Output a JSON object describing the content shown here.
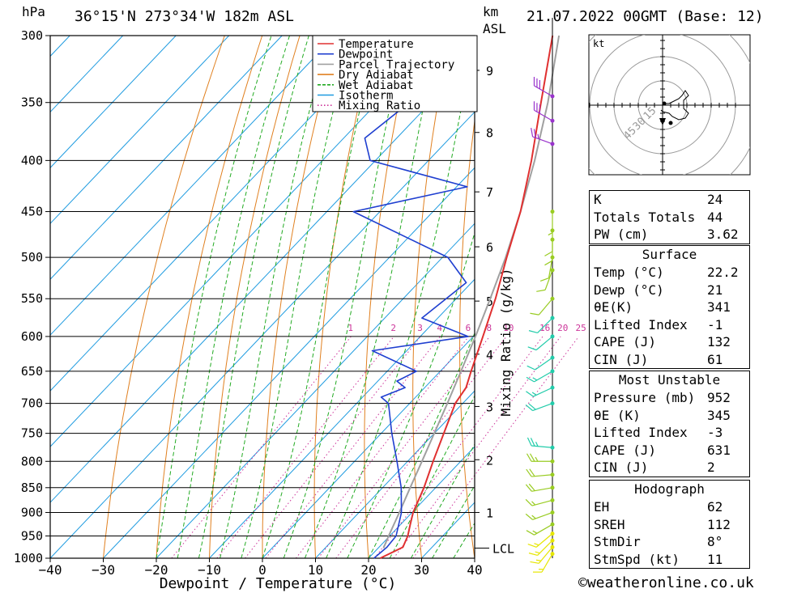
{
  "header": {
    "unit_hpa": "hPa",
    "location": "36°15'N 273°34'W 182m ASL",
    "unit_km": "km",
    "unit_asl": "ASL",
    "datetime": "21.07.2022 00GMT (Base: 12)"
  },
  "chart_data": {
    "type": "skew-t",
    "xlabel": "Dewpoint / Temperature (°C)",
    "ylabel_right": "Mixing Ratio (g/kg)",
    "xlim": [
      -40,
      40
    ],
    "pressure_range": [
      1000,
      300
    ],
    "pressure_ticks": [
      300,
      350,
      400,
      450,
      500,
      550,
      600,
      650,
      700,
      750,
      800,
      850,
      900,
      950,
      1000
    ],
    "temp_ticks": [
      -40,
      -30,
      -20,
      -10,
      0,
      10,
      20,
      30,
      40
    ],
    "km_ticks": [
      {
        "label": "1",
        "p": 900
      },
      {
        "label": "2",
        "p": 797
      },
      {
        "label": "3",
        "p": 705
      },
      {
        "label": "4",
        "p": 625
      },
      {
        "label": "5",
        "p": 553
      },
      {
        "label": "6",
        "p": 488
      },
      {
        "label": "7",
        "p": 430
      },
      {
        "label": "8",
        "p": 375
      },
      {
        "label": "9",
        "p": 325
      }
    ],
    "lcl_label": "LCL",
    "lcl_pressure": 977,
    "mixing_ratio_labels": [
      "1",
      "2",
      "3",
      "4",
      "6",
      "8",
      "10",
      "16",
      "20",
      "25"
    ],
    "mixing_ratio_values": [
      1,
      2,
      3,
      4,
      6,
      8,
      10,
      16,
      20,
      25
    ],
    "legend": [
      {
        "name": "Temperature",
        "color": "#e03030",
        "style": "solid"
      },
      {
        "name": "Dewpoint",
        "color": "#1f3fd0",
        "style": "solid"
      },
      {
        "name": "Parcel Trajectory",
        "color": "#a0a0a0",
        "style": "solid"
      },
      {
        "name": "Dry Adiabat",
        "color": "#e08020",
        "style": "solid"
      },
      {
        "name": "Wet Adiabat",
        "color": "#22aa22",
        "style": "dashed"
      },
      {
        "name": "Isotherm",
        "color": "#1e9be0",
        "style": "solid"
      },
      {
        "name": "Mixing Ratio",
        "color": "#cc3399",
        "style": "dotted"
      }
    ],
    "temperature": [
      {
        "p": 1000,
        "t": 22.2
      },
      {
        "p": 975,
        "t": 24.5
      },
      {
        "p": 950,
        "t": 23.4
      },
      {
        "p": 925,
        "t": 21.8
      },
      {
        "p": 900,
        "t": 20.2
      },
      {
        "p": 850,
        "t": 17.8
      },
      {
        "p": 800,
        "t": 14.8
      },
      {
        "p": 750,
        "t": 11.8
      },
      {
        "p": 700,
        "t": 8.6
      },
      {
        "p": 675,
        "t": 7.8
      },
      {
        "p": 650,
        "t": 5.8
      },
      {
        "p": 600,
        "t": 1.8
      },
      {
        "p": 550,
        "t": -2.6
      },
      {
        "p": 500,
        "t": -7.9
      },
      {
        "p": 450,
        "t": -13.5
      },
      {
        "p": 400,
        "t": -20.6
      },
      {
        "p": 350,
        "t": -29.2
      },
      {
        "p": 300,
        "t": -39.0
      }
    ],
    "dewpoint": [
      {
        "p": 1000,
        "t": 21.0
      },
      {
        "p": 975,
        "t": 21.5
      },
      {
        "p": 950,
        "t": 21.2
      },
      {
        "p": 900,
        "t": 18.0
      },
      {
        "p": 850,
        "t": 13.5
      },
      {
        "p": 800,
        "t": 8.0
      },
      {
        "p": 750,
        "t": 2.0
      },
      {
        "p": 700,
        "t": -4.0
      },
      {
        "p": 690,
        "t": -6.5
      },
      {
        "p": 675,
        "t": -3.7
      },
      {
        "p": 665,
        "t": -6.4
      },
      {
        "p": 650,
        "t": -4.5
      },
      {
        "p": 620,
        "t": -16.5
      },
      {
        "p": 600,
        "t": -1.0
      },
      {
        "p": 575,
        "t": -13.0
      },
      {
        "p": 530,
        "t": -11.0
      },
      {
        "p": 500,
        "t": -19.0
      },
      {
        "p": 450,
        "t": -45.0
      },
      {
        "p": 425,
        "t": -28.0
      },
      {
        "p": 400,
        "t": -51.0
      },
      {
        "p": 380,
        "t": -56.0
      },
      {
        "p": 350,
        "t": -54.0
      },
      {
        "p": 320,
        "t": -55.0
      },
      {
        "p": 300,
        "t": -68.0
      }
    ],
    "parcel": [
      {
        "p": 977,
        "t": 21.0
      },
      {
        "p": 950,
        "t": 19.8
      },
      {
        "p": 900,
        "t": 17.6
      },
      {
        "p": 850,
        "t": 15.2
      },
      {
        "p": 800,
        "t": 12.7
      },
      {
        "p": 750,
        "t": 10.0
      },
      {
        "p": 700,
        "t": 7.1
      },
      {
        "p": 650,
        "t": 3.9
      },
      {
        "p": 600,
        "t": 0.4
      },
      {
        "p": 550,
        "t": -3.6
      },
      {
        "p": 500,
        "t": -8.1
      },
      {
        "p": 450,
        "t": -13.5
      },
      {
        "p": 400,
        "t": -20.0
      },
      {
        "p": 350,
        "t": -27.9
      },
      {
        "p": 300,
        "t": -37.8
      }
    ],
    "wind_barbs": [
      {
        "p": 990,
        "dir": 210,
        "speed": 15
      },
      {
        "p": 975,
        "dir": 220,
        "speed": 15
      },
      {
        "p": 960,
        "dir": 225,
        "speed": 15
      },
      {
        "p": 945,
        "dir": 230,
        "speed": 15
      },
      {
        "p": 925,
        "dir": 240,
        "speed": 15
      },
      {
        "p": 900,
        "dir": 250,
        "speed": 15
      },
      {
        "p": 875,
        "dir": 255,
        "speed": 15
      },
      {
        "p": 850,
        "dir": 260,
        "speed": 20
      },
      {
        "p": 825,
        "dir": 265,
        "speed": 20
      },
      {
        "p": 800,
        "dir": 270,
        "speed": 25
      },
      {
        "p": 775,
        "dir": 275,
        "speed": 25
      },
      {
        "p": 700,
        "dir": 250,
        "speed": 20
      },
      {
        "p": 675,
        "dir": 245,
        "speed": 15
      },
      {
        "p": 650,
        "dir": 240,
        "speed": 15
      },
      {
        "p": 630,
        "dir": 235,
        "speed": 10
      },
      {
        "p": 600,
        "dir": 230,
        "speed": 10
      },
      {
        "p": 575,
        "dir": 225,
        "speed": 10
      },
      {
        "p": 550,
        "dir": 220,
        "speed": 10
      },
      {
        "p": 515,
        "dir": 200,
        "speed": 10
      },
      {
        "p": 500,
        "dir": 190,
        "speed": 10
      },
      {
        "p": 480,
        "dir": 180,
        "speed": 10
      },
      {
        "p": 470,
        "dir": 180,
        "speed": 10
      },
      {
        "p": 450,
        "dir": 180,
        "speed": 5
      },
      {
        "p": 385,
        "dir": 290,
        "speed": 25
      },
      {
        "p": 365,
        "dir": 300,
        "speed": 30
      },
      {
        "p": 345,
        "dir": 300,
        "speed": 30
      }
    ],
    "hodograph": {
      "unit_label": "kt",
      "ring_labels": [
        "15",
        "30",
        "45"
      ],
      "trace": [
        [
          2,
          1
        ],
        [
          4,
          1
        ],
        [
          6,
          2
        ],
        [
          10,
          4
        ],
        [
          12,
          6
        ],
        [
          14,
          9
        ],
        [
          16,
          6
        ],
        [
          13,
          3
        ],
        [
          13,
          -2
        ],
        [
          16,
          -5
        ],
        [
          14,
          -8
        ],
        [
          10,
          -9
        ],
        [
          6,
          -7
        ],
        [
          4,
          -5
        ],
        [
          0,
          -4
        ],
        [
          -1,
          -3
        ]
      ],
      "storm_motion": [
        0,
        -11
      ],
      "markers": [
        [
          1,
          1
        ],
        [
          5,
          -11
        ]
      ]
    }
  },
  "indices": {
    "k_label": "K",
    "k_value": "24",
    "tt_label": "Totals Totals",
    "tt_value": "44",
    "pw_label": "PW (cm)",
    "pw_value": "3.62"
  },
  "surface": {
    "title": "Surface",
    "temp_label": "Temp (°C)",
    "temp_value": "22.2",
    "dewp_label": "Dewp (°C)",
    "dewp_value": "21",
    "theta_label": "θE(K)",
    "theta_value": "341",
    "li_label": "Lifted Index",
    "li_value": "-1",
    "cape_label": "CAPE (J)",
    "cape_value": "132",
    "cin_label": "CIN (J)",
    "cin_value": "61"
  },
  "most_unstable": {
    "title": "Most Unstable",
    "pressure_label": "Pressure (mb)",
    "pressure_value": "952",
    "theta_label": "θE (K)",
    "theta_value": "345",
    "li_label": "Lifted Index",
    "li_value": "-3",
    "cape_label": "CAPE (J)",
    "cape_value": "631",
    "cin_label": "CIN (J)",
    "cin_value": "2"
  },
  "hodograph_stats": {
    "title": "Hodograph",
    "eh_label": "EH",
    "eh_value": "62",
    "sreh_label": "SREH",
    "sreh_value": "112",
    "stmdir_label": "StmDir",
    "stmdir_value": "8°",
    "stmspd_label": "StmSpd (kt)",
    "stmspd_value": "11"
  },
  "copyright": "©weatheronline.co.uk"
}
